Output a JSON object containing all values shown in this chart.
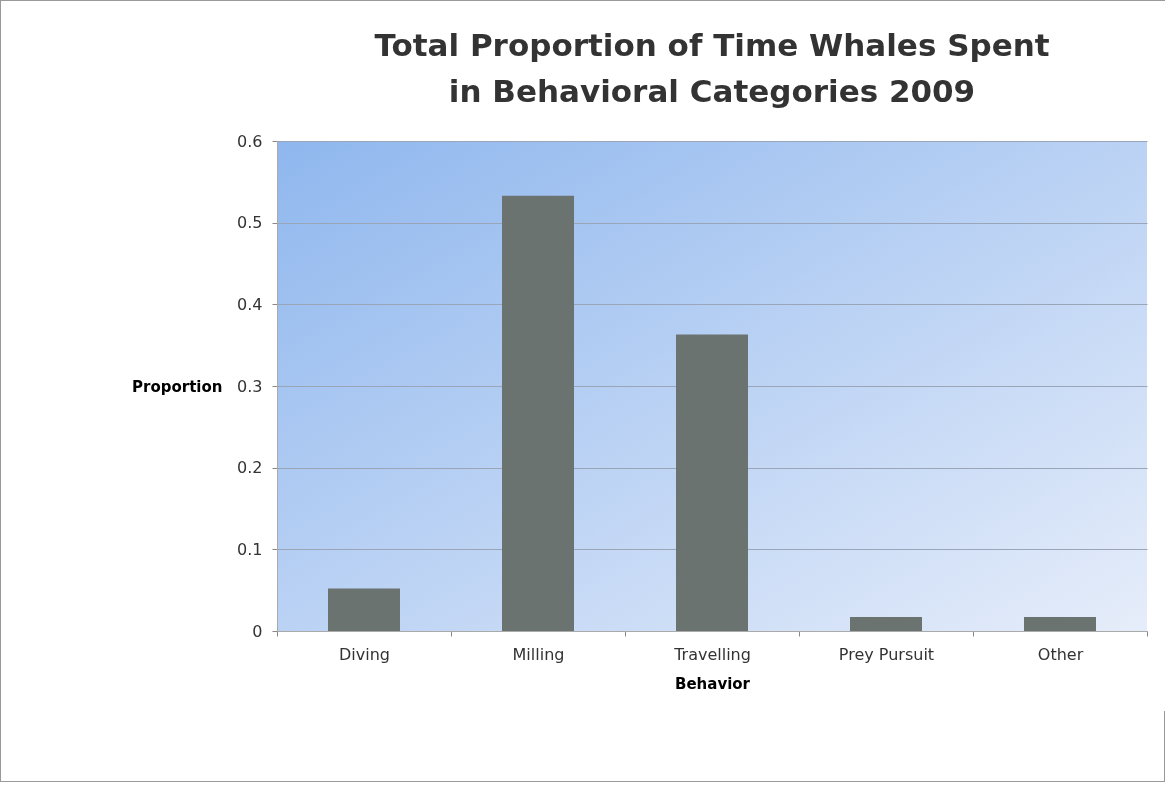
{
  "chart_data": {
    "type": "bar",
    "title": "Total Proportion of Time Whales Spent in Behavioral Categories 2009",
    "xlabel": "Behavior",
    "ylabel": "Proportion",
    "categories": [
      "Diving",
      "Milling",
      "Travelling",
      "Prey Pursuit",
      "Other"
    ],
    "values": [
      0.052,
      0.533,
      0.363,
      0.017,
      0.017
    ],
    "color": "#6b7370",
    "ylim": [
      0,
      0.6
    ],
    "yticks": [
      0,
      0.1,
      0.2,
      0.3,
      0.4,
      0.5,
      0.6
    ],
    "grid": "y"
  }
}
